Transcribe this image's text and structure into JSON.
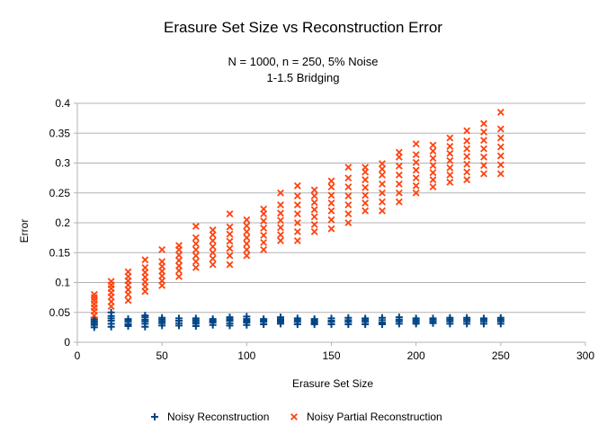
{
  "chart_data": {
    "type": "scatter",
    "title": "Erasure Set Size vs Reconstruction Error",
    "subtitle_lines": [
      "N = 1000, n = 250, 5% Noise",
      "1-1.5 Bridging"
    ],
    "xlabel": "Erasure Set Size",
    "ylabel": "Error",
    "xlim": [
      0,
      300
    ],
    "ylim": [
      0,
      0.4
    ],
    "x_ticks": [
      0,
      50,
      100,
      150,
      200,
      250,
      300
    ],
    "x_tick_labels": [
      "0",
      "50",
      "100",
      "150",
      "200",
      "250",
      "300"
    ],
    "y_ticks": [
      0,
      0.05,
      0.1,
      0.15,
      0.2,
      0.25,
      0.3,
      0.35,
      0.4
    ],
    "y_tick_labels": [
      "0",
      "0.05",
      "0.1",
      "0.15",
      "0.2",
      "0.25",
      "0.3",
      "0.35",
      "0.4"
    ],
    "grid": "horizontal",
    "legend_position": "bottom",
    "series": [
      {
        "name": "Noisy Reconstruction",
        "marker": "plus",
        "color": "#004586",
        "x": [
          10,
          10,
          10,
          10,
          10,
          10,
          20,
          20,
          20,
          20,
          20,
          20,
          30,
          30,
          30,
          30,
          30,
          40,
          40,
          40,
          40,
          40,
          40,
          50,
          50,
          50,
          50,
          50,
          60,
          60,
          60,
          60,
          70,
          70,
          70,
          70,
          70,
          80,
          80,
          80,
          80,
          90,
          90,
          90,
          90,
          90,
          100,
          100,
          100,
          100,
          100,
          110,
          110,
          110,
          110,
          120,
          120,
          120,
          120,
          120,
          130,
          130,
          130,
          130,
          140,
          140,
          140,
          140,
          150,
          150,
          150,
          150,
          160,
          160,
          160,
          160,
          170,
          170,
          170,
          170,
          180,
          180,
          180,
          180,
          190,
          190,
          190,
          190,
          200,
          200,
          200,
          200,
          210,
          210,
          210,
          210,
          220,
          220,
          220,
          220,
          230,
          230,
          230,
          230,
          240,
          240,
          240,
          240,
          250,
          250,
          250,
          250
        ],
        "y": [
          0.025,
          0.029,
          0.032,
          0.035,
          0.038,
          0.041,
          0.026,
          0.031,
          0.036,
          0.04,
          0.044,
          0.05,
          0.027,
          0.03,
          0.034,
          0.037,
          0.039,
          0.026,
          0.031,
          0.035,
          0.038,
          0.042,
          0.045,
          0.028,
          0.032,
          0.035,
          0.038,
          0.041,
          0.028,
          0.032,
          0.036,
          0.04,
          0.027,
          0.031,
          0.034,
          0.037,
          0.04,
          0.029,
          0.033,
          0.036,
          0.039,
          0.028,
          0.032,
          0.036,
          0.039,
          0.042,
          0.029,
          0.033,
          0.036,
          0.039,
          0.043,
          0.03,
          0.034,
          0.036,
          0.039,
          0.031,
          0.034,
          0.036,
          0.039,
          0.042,
          0.03,
          0.034,
          0.037,
          0.04,
          0.03,
          0.033,
          0.036,
          0.039,
          0.03,
          0.034,
          0.036,
          0.04,
          0.03,
          0.034,
          0.037,
          0.041,
          0.03,
          0.034,
          0.037,
          0.04,
          0.03,
          0.033,
          0.037,
          0.041,
          0.031,
          0.035,
          0.038,
          0.042,
          0.031,
          0.034,
          0.037,
          0.04,
          0.032,
          0.035,
          0.038,
          0.04,
          0.031,
          0.035,
          0.038,
          0.041,
          0.031,
          0.035,
          0.038,
          0.041,
          0.031,
          0.035,
          0.038,
          0.04,
          0.031,
          0.035,
          0.038,
          0.041
        ]
      },
      {
        "name": "Noisy Partial Reconstruction",
        "marker": "x",
        "color": "#ff420e",
        "x": [
          10,
          10,
          10,
          10,
          10,
          10,
          10,
          20,
          20,
          20,
          20,
          20,
          20,
          20,
          30,
          30,
          30,
          30,
          30,
          30,
          30,
          40,
          40,
          40,
          40,
          40,
          40,
          40,
          50,
          50,
          50,
          50,
          50,
          50,
          50,
          60,
          60,
          60,
          60,
          60,
          60,
          60,
          70,
          70,
          70,
          70,
          70,
          70,
          70,
          80,
          80,
          80,
          80,
          80,
          80,
          80,
          90,
          90,
          90,
          90,
          90,
          90,
          90,
          100,
          100,
          100,
          100,
          100,
          100,
          100,
          110,
          110,
          110,
          110,
          110,
          110,
          110,
          120,
          120,
          120,
          120,
          120,
          120,
          120,
          130,
          130,
          130,
          130,
          130,
          130,
          130,
          140,
          140,
          140,
          140,
          140,
          140,
          140,
          150,
          150,
          150,
          150,
          150,
          150,
          150,
          160,
          160,
          160,
          160,
          160,
          160,
          160,
          170,
          170,
          170,
          170,
          170,
          170,
          170,
          180,
          180,
          180,
          180,
          180,
          180,
          180,
          190,
          190,
          190,
          190,
          190,
          190,
          190,
          200,
          200,
          200,
          200,
          200,
          200,
          200,
          210,
          210,
          210,
          210,
          210,
          210,
          210,
          220,
          220,
          220,
          220,
          220,
          220,
          220,
          230,
          230,
          230,
          230,
          230,
          230,
          230,
          240,
          240,
          240,
          240,
          240,
          240,
          240,
          250,
          250,
          250,
          250,
          250,
          250,
          250
        ],
        "y": [
          0.045,
          0.052,
          0.058,
          0.064,
          0.07,
          0.075,
          0.08,
          0.06,
          0.068,
          0.076,
          0.083,
          0.09,
          0.096,
          0.102,
          0.07,
          0.08,
          0.088,
          0.096,
          0.103,
          0.11,
          0.118,
          0.085,
          0.093,
          0.101,
          0.109,
          0.117,
          0.125,
          0.138,
          0.095,
          0.103,
          0.111,
          0.119,
          0.127,
          0.135,
          0.155,
          0.11,
          0.12,
          0.128,
          0.137,
          0.146,
          0.155,
          0.162,
          0.125,
          0.135,
          0.145,
          0.155,
          0.165,
          0.175,
          0.194,
          0.13,
          0.14,
          0.15,
          0.16,
          0.17,
          0.18,
          0.188,
          0.13,
          0.145,
          0.157,
          0.169,
          0.181,
          0.193,
          0.215,
          0.145,
          0.155,
          0.165,
          0.175,
          0.185,
          0.195,
          0.205,
          0.155,
          0.167,
          0.179,
          0.191,
          0.203,
          0.215,
          0.223,
          0.17,
          0.18,
          0.192,
          0.204,
          0.216,
          0.23,
          0.25,
          0.17,
          0.185,
          0.2,
          0.215,
          0.23,
          0.245,
          0.262,
          0.185,
          0.197,
          0.21,
          0.222,
          0.234,
          0.245,
          0.255,
          0.19,
          0.205,
          0.22,
          0.233,
          0.246,
          0.26,
          0.27,
          0.2,
          0.215,
          0.23,
          0.245,
          0.26,
          0.275,
          0.293,
          0.22,
          0.233,
          0.246,
          0.259,
          0.272,
          0.285,
          0.293,
          0.22,
          0.235,
          0.25,
          0.265,
          0.28,
          0.29,
          0.299,
          0.235,
          0.25,
          0.265,
          0.28,
          0.295,
          0.31,
          0.318,
          0.25,
          0.262,
          0.275,
          0.288,
          0.301,
          0.314,
          0.332,
          0.26,
          0.272,
          0.284,
          0.296,
          0.308,
          0.32,
          0.33,
          0.268,
          0.28,
          0.292,
          0.304,
          0.316,
          0.328,
          0.342,
          0.272,
          0.285,
          0.298,
          0.311,
          0.324,
          0.337,
          0.354,
          0.282,
          0.296,
          0.31,
          0.324,
          0.338,
          0.352,
          0.366,
          0.282,
          0.297,
          0.312,
          0.327,
          0.342,
          0.357,
          0.385
        ]
      }
    ]
  }
}
